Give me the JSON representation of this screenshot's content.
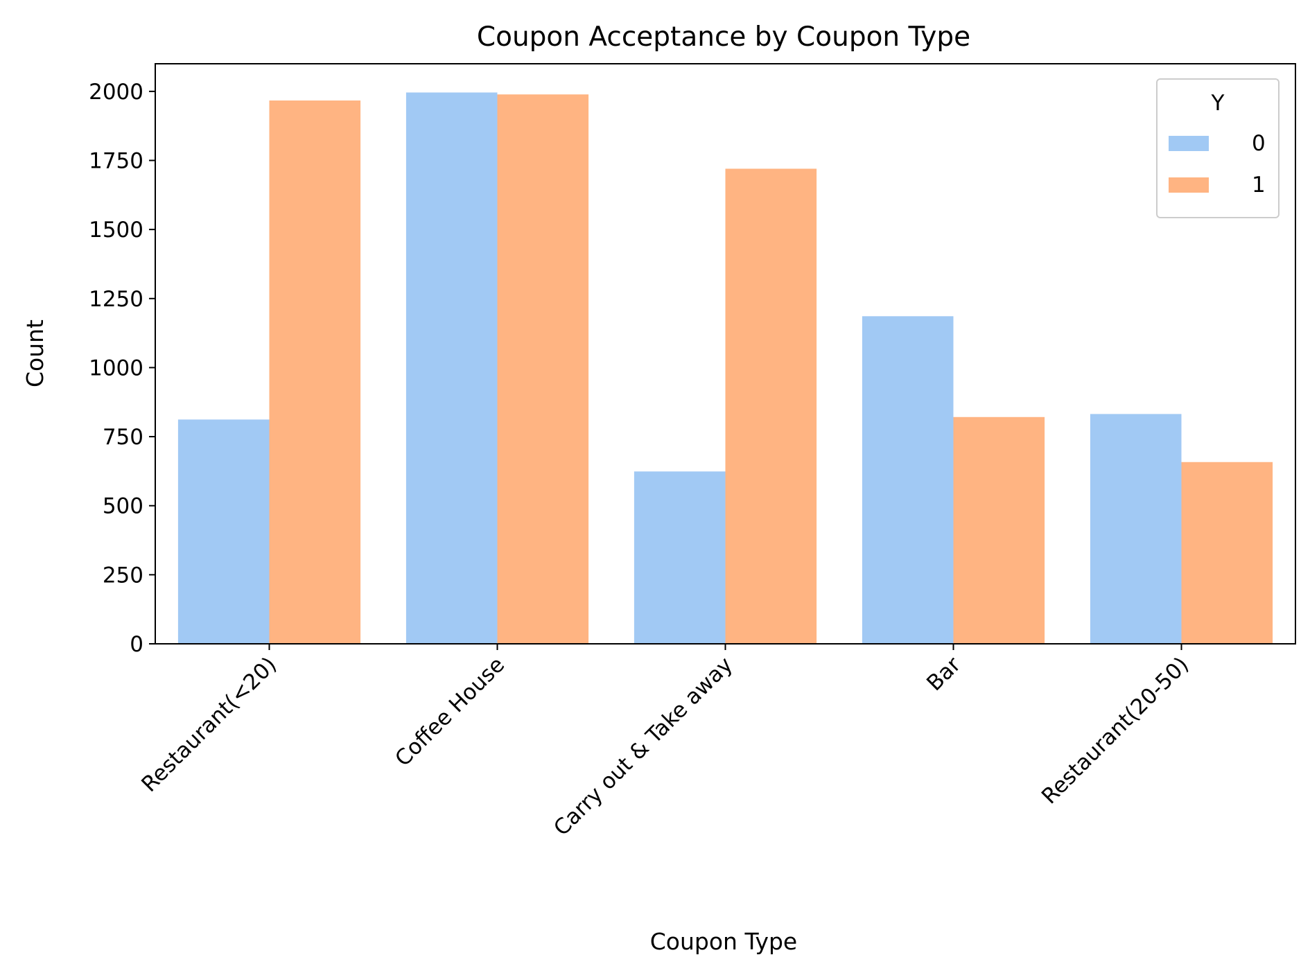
{
  "chart_data": {
    "type": "bar",
    "title": "Coupon Acceptance by Coupon Type",
    "xlabel": "Coupon Type",
    "ylabel": "Count",
    "categories": [
      "Restaurant(<20)",
      "Coffee House",
      "Carry out & Take away",
      "Bar",
      "Restaurant(20-50)"
    ],
    "series": [
      {
        "name": "0",
        "values": [
          812,
          1996,
          624,
          1186,
          832
        ],
        "color": "#a1c9f4"
      },
      {
        "name": "1",
        "values": [
          1967,
          1989,
          1720,
          821,
          658
        ],
        "color": "#ffb482"
      }
    ],
    "ylim": [
      0,
      2100
    ],
    "yticks": [
      0,
      250,
      500,
      750,
      1000,
      1250,
      1500,
      1750,
      2000
    ],
    "legend": {
      "title": "Y",
      "placement": "top-right"
    },
    "grid": false
  }
}
